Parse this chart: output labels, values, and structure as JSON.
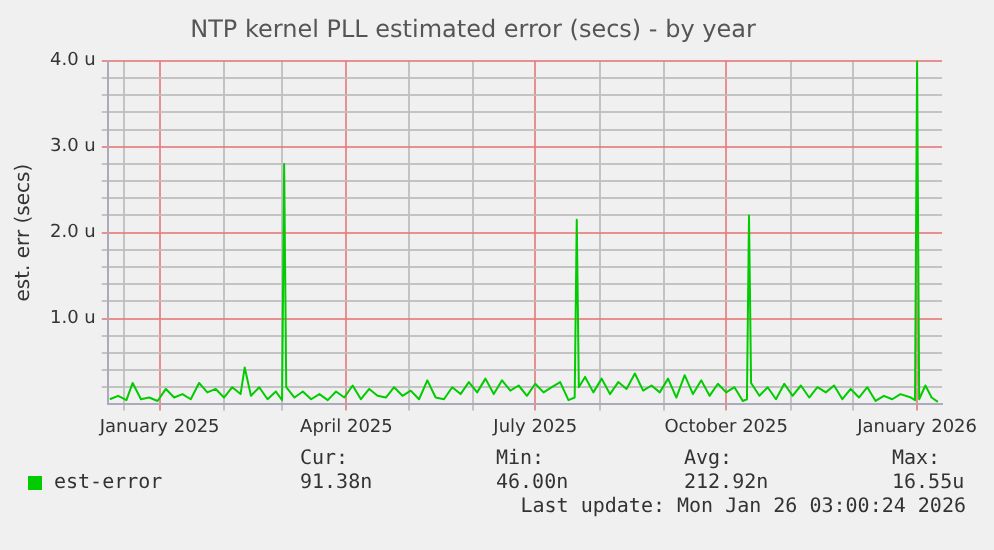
{
  "chart_data": {
    "type": "line",
    "title": "NTP kernel PLL estimated error (secs) - by year",
    "ylabel": "est. err (secs)",
    "x": [
      "2024-12-08",
      "2024-12-12",
      "2024-12-16",
      "2024-12-19",
      "2024-12-23",
      "2024-12-27",
      "2024-12-31",
      "2025-01-04",
      "2025-01-08",
      "2025-01-12",
      "2025-01-16",
      "2025-01-20",
      "2025-01-24",
      "2025-01-28",
      "2025-02-01",
      "2025-02-05",
      "2025-02-09",
      "2025-02-11",
      "2025-02-14",
      "2025-02-18",
      "2025-02-22",
      "2025-02-26",
      "2025-03-01",
      "2025-03-02",
      "2025-03-03",
      "2025-03-07",
      "2025-03-11",
      "2025-03-15",
      "2025-03-19",
      "2025-03-23",
      "2025-03-27",
      "2025-03-31",
      "2025-04-04",
      "2025-04-08",
      "2025-04-12",
      "2025-04-16",
      "2025-04-20",
      "2025-04-24",
      "2025-04-28",
      "2025-05-02",
      "2025-05-06",
      "2025-05-10",
      "2025-05-14",
      "2025-05-18",
      "2025-05-22",
      "2025-05-26",
      "2025-05-30",
      "2025-06-03",
      "2025-06-07",
      "2025-06-11",
      "2025-06-15",
      "2025-06-19",
      "2025-06-23",
      "2025-06-27",
      "2025-07-01",
      "2025-07-05",
      "2025-07-09",
      "2025-07-13",
      "2025-07-17",
      "2025-07-20",
      "2025-07-21",
      "2025-07-22",
      "2025-07-25",
      "2025-07-29",
      "2025-08-02",
      "2025-08-06",
      "2025-08-10",
      "2025-08-14",
      "2025-08-18",
      "2025-08-22",
      "2025-08-26",
      "2025-08-30",
      "2025-09-03",
      "2025-09-07",
      "2025-09-11",
      "2025-09-15",
      "2025-09-19",
      "2025-09-23",
      "2025-09-27",
      "2025-10-01",
      "2025-10-05",
      "2025-10-09",
      "2025-10-11",
      "2025-10-12",
      "2025-10-13",
      "2025-10-17",
      "2025-10-21",
      "2025-10-25",
      "2025-10-29",
      "2025-11-02",
      "2025-11-06",
      "2025-11-10",
      "2025-11-14",
      "2025-11-18",
      "2025-11-22",
      "2025-11-26",
      "2025-11-30",
      "2025-12-04",
      "2025-12-08",
      "2025-12-12",
      "2025-12-16",
      "2025-12-20",
      "2025-12-24",
      "2025-12-29",
      "2025-12-31",
      "2026-01-01",
      "2026-01-02",
      "2026-01-05",
      "2026-01-08",
      "2026-01-11"
    ],
    "series": [
      {
        "name": "est-error",
        "color": "#00cc00",
        "values": [
          0.06,
          0.1,
          0.05,
          0.25,
          0.06,
          0.08,
          0.04,
          0.18,
          0.08,
          0.12,
          0.06,
          0.25,
          0.14,
          0.18,
          0.08,
          0.2,
          0.12,
          0.43,
          0.1,
          0.2,
          0.06,
          0.15,
          0.05,
          2.8,
          0.2,
          0.08,
          0.15,
          0.06,
          0.12,
          0.05,
          0.15,
          0.08,
          0.22,
          0.06,
          0.18,
          0.1,
          0.08,
          0.2,
          0.1,
          0.16,
          0.06,
          0.28,
          0.08,
          0.06,
          0.2,
          0.12,
          0.26,
          0.14,
          0.3,
          0.12,
          0.28,
          0.16,
          0.22,
          0.1,
          0.24,
          0.14,
          0.2,
          0.26,
          0.05,
          0.08,
          2.15,
          0.2,
          0.32,
          0.14,
          0.3,
          0.12,
          0.26,
          0.18,
          0.36,
          0.16,
          0.22,
          0.14,
          0.3,
          0.08,
          0.34,
          0.12,
          0.28,
          0.1,
          0.24,
          0.14,
          0.2,
          0.04,
          0.06,
          2.2,
          0.25,
          0.1,
          0.2,
          0.06,
          0.24,
          0.1,
          0.22,
          0.08,
          0.2,
          0.14,
          0.22,
          0.06,
          0.18,
          0.08,
          0.2,
          0.04,
          0.1,
          0.06,
          0.12,
          0.08,
          0.05,
          4.0,
          0.06,
          0.22,
          0.08,
          0.03
        ]
      }
    ],
    "xlim": [
      "2024-12-07",
      "2026-01-13"
    ],
    "xticks": [
      {
        "value": "2024-12-15",
        "label": null
      },
      {
        "value": "2025-01-01",
        "label": "January 2025"
      },
      {
        "value": "2025-02-01",
        "label": null
      },
      {
        "value": "2025-03-01",
        "label": null
      },
      {
        "value": "2025-04-01",
        "label": "April 2025"
      },
      {
        "value": "2025-05-01",
        "label": null
      },
      {
        "value": "2025-06-01",
        "label": null
      },
      {
        "value": "2025-07-01",
        "label": "July 2025"
      },
      {
        "value": "2025-08-01",
        "label": null
      },
      {
        "value": "2025-09-01",
        "label": null
      },
      {
        "value": "2025-10-01",
        "label": "October 2025"
      },
      {
        "value": "2025-11-01",
        "label": null
      },
      {
        "value": "2025-12-01",
        "label": null
      },
      {
        "value": "2026-01-01",
        "label": "January 2026"
      }
    ],
    "ylim": [
      0,
      4.0
    ],
    "yticks": [
      {
        "value": 0.2,
        "label": null
      },
      {
        "value": 0.4,
        "label": null
      },
      {
        "value": 0.6,
        "label": null
      },
      {
        "value": 0.8,
        "label": null
      },
      {
        "value": 1.0,
        "label": "1.0 u"
      },
      {
        "value": 1.2,
        "label": null
      },
      {
        "value": 1.4,
        "label": null
      },
      {
        "value": 1.6,
        "label": null
      },
      {
        "value": 1.8,
        "label": null
      },
      {
        "value": 2.0,
        "label": "2.0 u"
      },
      {
        "value": 2.2,
        "label": null
      },
      {
        "value": 2.4,
        "label": null
      },
      {
        "value": 2.6,
        "label": null
      },
      {
        "value": 2.8,
        "label": null
      },
      {
        "value": 3.0,
        "label": "3.0 u"
      },
      {
        "value": 3.2,
        "label": null
      },
      {
        "value": 3.4,
        "label": null
      },
      {
        "value": 3.6,
        "label": null
      },
      {
        "value": 3.8,
        "label": null
      },
      {
        "value": 4.0,
        "label": "4.0 u"
      }
    ],
    "grid": true,
    "legend": "bottom",
    "annotations": [
      "Cur:",
      "Min:",
      "Avg:",
      "Max:",
      "91.38n",
      "46.00n",
      "212.92n",
      "16.55u",
      "Last update: Mon Jan 26 03:00:24 2026"
    ]
  }
}
